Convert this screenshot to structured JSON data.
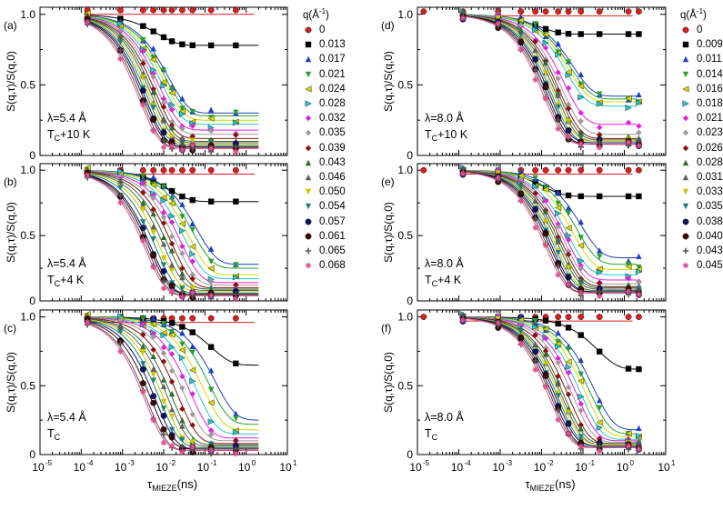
{
  "figure": {
    "xlabel_main": "τ",
    "xlabel_sub": "MIEZE",
    "xlabel_unit": "(ns)",
    "ylabel": "S(q,τ)/S(q,0)"
  },
  "legends": [
    {
      "title": "q(Å",
      "title_sup": "-1",
      "title_tail": ")",
      "entries": [
        "0",
        "0.013",
        "0.017",
        "0.021",
        "0.024",
        "0.028",
        "0.032",
        "0.035",
        "0.039",
        "0.043",
        "0.046",
        "0.050",
        "0.054",
        "0.057",
        "0.061",
        "0.065",
        "0.068"
      ]
    },
    {
      "title": "q(Å",
      "title_sup": "-1",
      "title_tail": ")",
      "entries": [
        "0",
        "0.009",
        "0.011",
        "0.014",
        "0.016",
        "0.018",
        "0.021",
        "0.023",
        "0.026",
        "0.028",
        "0.031",
        "0.033",
        "0.035",
        "0.038",
        "0.040",
        "0.043",
        "0.045"
      ]
    }
  ],
  "series_style": {
    "colors": [
      "#d62020",
      "#000000",
      "#1f3fbf",
      "#2aa02a",
      "#d8d800",
      "#28c8c8",
      "#e020e0",
      "#9a9a9a",
      "#8b1010",
      "#2e6b2e",
      "#606060",
      "#c8c800",
      "#208080",
      "#101060",
      "#3a0a0a",
      "#555555",
      "#e05090"
    ],
    "markers": [
      "circle",
      "square",
      "triangle-up",
      "triangle-down",
      "triangle-left",
      "triangle-right",
      "diamond",
      "diamond",
      "diamond",
      "triangle-up",
      "triangle-up",
      "triangle-down",
      "triangle-down",
      "circle",
      "circle",
      "plus",
      "asterisk"
    ]
  },
  "chart_data": [
    {
      "panel": "a",
      "type": "scatter",
      "wavelength": "λ=5.4 Å",
      "temperature": "T",
      "temp_sub": "C",
      "temp_tail": "+10 K",
      "xscale": "log",
      "xlim": [
        1e-05,
        10
      ],
      "ylim": [
        0,
        1.05
      ],
      "x_ticks": [
        "10",
        "10",
        "10",
        "10",
        "10",
        "10",
        "10"
      ],
      "x_tick_exps": [
        "-5",
        "-4",
        "-3",
        "-2",
        "-1",
        "0",
        "1"
      ],
      "y_ticks": [
        "0",
        "0.5",
        "1.0"
      ],
      "tau50_log10": [
        -2.05,
        -2.1,
        -2.15,
        -2.2,
        -2.25,
        -2.3,
        -2.35,
        -2.4,
        -2.45,
        -2.5,
        -2.55,
        -2.6,
        -2.65,
        -2.7,
        -2.75
      ],
      "plateaus": [
        0.3,
        0.28,
        0.25,
        0.22,
        0.18,
        0.15,
        0.12,
        0.1,
        0.09,
        0.08,
        0.07,
        0.06,
        0.06,
        0.05,
        0.05
      ],
      "q0_level": 1.03,
      "q1_plateau": 0.78,
      "q1_tau50_log10": -2.3
    },
    {
      "panel": "b",
      "type": "scatter",
      "wavelength": "λ=5.4 Å",
      "temperature": "T",
      "temp_sub": "C",
      "temp_tail": "+4 K",
      "xscale": "log",
      "xlim": [
        1e-05,
        10
      ],
      "ylim": [
        0,
        1.05
      ],
      "x_ticks": [
        "10",
        "10",
        "10",
        "10",
        "10",
        "10",
        "10"
      ],
      "x_tick_exps": [
        "-5",
        "-4",
        "-3",
        "-2",
        "-1",
        "0",
        "1"
      ],
      "y_ticks": [
        "0",
        "0.5",
        "1.0"
      ],
      "tau50_log10": [
        -1.35,
        -1.45,
        -1.55,
        -1.65,
        -1.75,
        -1.85,
        -1.95,
        -2.05,
        -2.15,
        -2.25,
        -2.35,
        -2.45,
        -2.5,
        -2.55,
        -2.6
      ],
      "plateaus": [
        0.28,
        0.25,
        0.2,
        0.17,
        0.14,
        0.12,
        0.1,
        0.09,
        0.08,
        0.07,
        0.06,
        0.05,
        0.05,
        0.04,
        0.04
      ],
      "q0_level": 1.0,
      "q1_plateau": 0.76,
      "q1_tau50_log10": -2.0
    },
    {
      "panel": "c",
      "type": "scatter",
      "wavelength": "λ=5.4 Å",
      "temperature": "T",
      "temp_sub": "C",
      "temp_tail": "",
      "xscale": "log",
      "xlim": [
        1e-05,
        10
      ],
      "ylim": [
        0,
        1.05
      ],
      "x_ticks": [
        "10",
        "10",
        "10",
        "10",
        "10",
        "10",
        "10"
      ],
      "x_tick_exps": [
        "-5",
        "-4",
        "-3",
        "-2",
        "-1",
        "0",
        "1"
      ],
      "y_ticks": [
        "0",
        "0.5",
        "1.0"
      ],
      "tau50_log10": [
        -0.9,
        -1.05,
        -1.2,
        -1.35,
        -1.5,
        -1.65,
        -1.8,
        -1.95,
        -2.05,
        -2.15,
        -2.25,
        -2.35,
        -2.45,
        -2.55,
        -2.6
      ],
      "plateaus": [
        0.25,
        0.22,
        0.18,
        0.15,
        0.12,
        0.1,
        0.08,
        0.07,
        0.06,
        0.05,
        0.05,
        0.04,
        0.04,
        0.03,
        0.03
      ],
      "q0_level": 0.99,
      "q1_plateau": 0.65,
      "q1_tau50_log10": -1.0
    },
    {
      "panel": "d",
      "type": "scatter",
      "wavelength": "λ=8.0 Å",
      "temperature": "T",
      "temp_sub": "C",
      "temp_tail": "+10 K",
      "xscale": "log",
      "xlim": [
        1e-05,
        10
      ],
      "ylim": [
        0,
        1.05
      ],
      "x_ticks": [
        "10",
        "10",
        "10",
        "10",
        "10",
        "10",
        "10"
      ],
      "x_tick_exps": [
        "-5",
        "-4",
        "-3",
        "-2",
        "-1",
        "0",
        "1"
      ],
      "y_ticks": [
        "0",
        "0.5",
        "1.0"
      ],
      "tau50_log10": [
        -1.4,
        -1.45,
        -1.5,
        -1.55,
        -1.6,
        -1.65,
        -1.7,
        -1.75,
        -1.8,
        -1.85,
        -1.9,
        -1.95,
        -2.0,
        -2.05,
        -2.1
      ],
      "plateaus": [
        0.42,
        0.4,
        0.38,
        0.35,
        0.22,
        0.15,
        0.12,
        0.11,
        0.1,
        0.1,
        0.09,
        0.09,
        0.08,
        0.08,
        0.08
      ],
      "q0_level": 1.02,
      "q1_plateau": 0.86,
      "q1_tau50_log10": -2.2
    },
    {
      "panel": "e",
      "type": "scatter",
      "wavelength": "λ=8.0 Å",
      "temperature": "T",
      "temp_sub": "C",
      "temp_tail": "+4 K",
      "xscale": "log",
      "xlim": [
        1e-05,
        10
      ],
      "ylim": [
        0,
        1.05
      ],
      "x_ticks": [
        "10",
        "10",
        "10",
        "10",
        "10",
        "10",
        "10"
      ],
      "x_tick_exps": [
        "-5",
        "-4",
        "-3",
        "-2",
        "-1",
        "0",
        "1"
      ],
      "y_ticks": [
        "0",
        "0.5",
        "1.0"
      ],
      "tau50_log10": [
        -1.2,
        -1.3,
        -1.4,
        -1.5,
        -1.55,
        -1.6,
        -1.65,
        -1.7,
        -1.75,
        -1.8,
        -1.85,
        -1.9,
        -1.95,
        -2.0,
        -2.05
      ],
      "plateaus": [
        0.33,
        0.28,
        0.24,
        0.2,
        0.16,
        0.13,
        0.11,
        0.1,
        0.09,
        0.08,
        0.08,
        0.07,
        0.07,
        0.06,
        0.06
      ],
      "q0_level": 1.0,
      "q1_plateau": 0.8,
      "q1_tau50_log10": -2.1
    },
    {
      "panel": "f",
      "type": "scatter",
      "wavelength": "λ=8.0 Å",
      "temperature": "T",
      "temp_sub": "C",
      "temp_tail": "",
      "xscale": "log",
      "xlim": [
        1e-05,
        10
      ],
      "ylim": [
        0,
        1.05
      ],
      "x_ticks": [
        "10",
        "10",
        "10",
        "10",
        "10",
        "10",
        "10"
      ],
      "x_tick_exps": [
        "-5",
        "-4",
        "-3",
        "-2",
        "-1",
        "0",
        "1"
      ],
      "y_ticks": [
        "0",
        "0.5",
        "1.0"
      ],
      "tau50_log10": [
        -0.9,
        -1.0,
        -1.1,
        -1.2,
        -1.3,
        -1.4,
        -1.5,
        -1.6,
        -1.65,
        -1.7,
        -1.75,
        -1.8,
        -1.85,
        -1.9,
        -1.95
      ],
      "plateaus": [
        0.18,
        0.15,
        0.13,
        0.11,
        0.1,
        0.09,
        0.08,
        0.08,
        0.07,
        0.07,
        0.06,
        0.06,
        0.05,
        0.05,
        0.05
      ],
      "q0_level": 1.0,
      "q1_plateau": 0.62,
      "q1_tau50_log10": -0.8
    }
  ]
}
